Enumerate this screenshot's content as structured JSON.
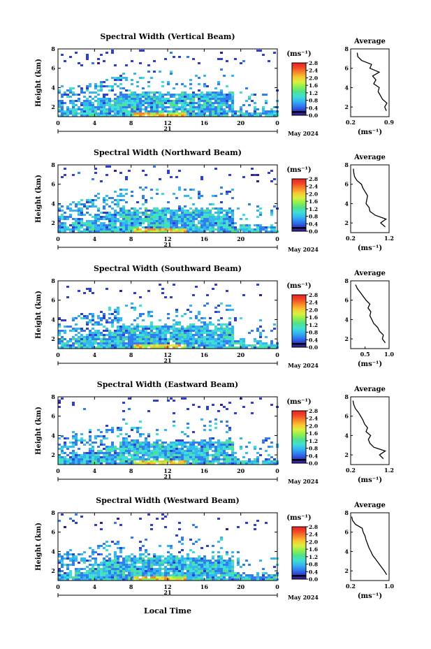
{
  "figure": {
    "xlabel": "Local Time",
    "colorbar_unit": "(ms⁻¹)",
    "avg_title": "Average",
    "avg_unit": "(ms⁻¹)",
    "date_day": "21",
    "date_label": "May 2024",
    "colors": {
      "scale": [
        "#3a1a8c",
        "#2f3fd0",
        "#2f7ff0",
        "#35b8f0",
        "#40e0d0",
        "#52e08a",
        "#8ef050",
        "#d8f040",
        "#f8c830",
        "#f88828",
        "#f04828",
        "#e82020"
      ],
      "black_band": "#000000"
    }
  },
  "chart_data": [
    {
      "type": "heatmap",
      "title": "Spectral Width (Vertical Beam)",
      "ylabel": "Height (km)",
      "x_ticks": [
        "0",
        "4",
        "8",
        "12",
        "16",
        "20",
        "0"
      ],
      "xlim": [
        0,
        24
      ],
      "y_ticks": [
        "2",
        "4",
        "6",
        "8"
      ],
      "ylim": [
        1,
        8
      ],
      "colorbar_ticks": [
        "0.0",
        "0.4",
        "0.8",
        "1.2",
        "1.6",
        "2.0",
        "2.4",
        "2.8"
      ],
      "colorbar_range": [
        0,
        2.8
      ],
      "avg_profile": {
        "x_ticks": [
          "0.2",
          "0.9"
        ],
        "xlim": [
          0.2,
          0.9
        ],
        "y_ticks": [
          "2",
          "4",
          "6",
          "8"
        ],
        "ylim": [
          1,
          8
        ],
        "height": [
          1.6,
          2.0,
          2.4,
          2.8,
          3.2,
          3.6,
          4.0,
          4.4,
          4.8,
          5.2,
          5.6,
          6.0,
          6.4,
          6.8,
          7.2,
          7.6
        ],
        "value": [
          0.85,
          0.82,
          0.86,
          0.78,
          0.74,
          0.7,
          0.72,
          0.62,
          0.66,
          0.6,
          0.72,
          0.55,
          0.58,
          0.4,
          0.33,
          0.32
        ]
      }
    },
    {
      "type": "heatmap",
      "title": "Spectral Width (Northward Beam)",
      "ylabel": "Height (km)",
      "x_ticks": [
        "0",
        "4",
        "8",
        "12",
        "16",
        "20",
        "0"
      ],
      "xlim": [
        0,
        24
      ],
      "y_ticks": [
        "2",
        "4",
        "6",
        "8"
      ],
      "ylim": [
        1,
        8
      ],
      "colorbar_ticks": [
        "0.0",
        "0.4",
        "0.8",
        "1.2",
        "1.6",
        "2.0",
        "2.4",
        "2.8"
      ],
      "colorbar_range": [
        0,
        2.8
      ],
      "avg_profile": {
        "x_ticks": [
          "0.2",
          "1.2"
        ],
        "xlim": [
          0.2,
          1.2
        ],
        "y_ticks": [
          "2",
          "4",
          "6",
          "8"
        ],
        "ylim": [
          1,
          8
        ],
        "height": [
          1.6,
          2.0,
          2.4,
          2.8,
          3.2,
          3.6,
          4.0,
          4.4,
          4.8,
          5.2,
          5.6,
          6.0,
          6.4,
          6.8,
          7.2,
          7.6
        ],
        "value": [
          1.1,
          0.98,
          1.12,
          0.84,
          0.7,
          0.68,
          0.6,
          0.62,
          0.64,
          0.58,
          0.52,
          0.48,
          0.36,
          0.3,
          0.28,
          0.27
        ]
      }
    },
    {
      "type": "heatmap",
      "title": "Spectral Width (Southward Beam)",
      "ylabel": "Height (km)",
      "x_ticks": [
        "0",
        "4",
        "8",
        "12",
        "16",
        "20",
        "0"
      ],
      "xlim": [
        0,
        24
      ],
      "y_ticks": [
        "2",
        "4",
        "6",
        "8"
      ],
      "ylim": [
        1,
        8
      ],
      "colorbar_ticks": [
        "0.0",
        "0.4",
        "0.8",
        "1.2",
        "1.6",
        "2.0",
        "2.4",
        "2.8"
      ],
      "colorbar_range": [
        0,
        2.8
      ],
      "avg_profile": {
        "x_ticks": [
          "0.5",
          "1.0"
        ],
        "xlim": [
          0.2,
          1.0
        ],
        "y_ticks": [
          "2",
          "4",
          "6",
          "8"
        ],
        "ylim": [
          1,
          8
        ],
        "height": [
          1.6,
          2.0,
          2.4,
          2.8,
          3.2,
          3.6,
          4.0,
          4.4,
          4.8,
          5.2,
          5.6,
          6.0,
          6.4,
          6.8,
          7.2,
          7.6
        ],
        "value": [
          0.92,
          0.86,
          0.88,
          0.8,
          0.76,
          0.68,
          0.64,
          0.6,
          0.62,
          0.56,
          0.6,
          0.52,
          0.46,
          0.4,
          0.34,
          0.3
        ]
      }
    },
    {
      "type": "heatmap",
      "title": "Spectral Width (Eastward Beam)",
      "ylabel": "Height (km)",
      "x_ticks": [
        "0",
        "4",
        "8",
        "12",
        "16",
        "20",
        "0"
      ],
      "xlim": [
        0,
        24
      ],
      "y_ticks": [
        "2",
        "4",
        "6",
        "8"
      ],
      "ylim": [
        1,
        8
      ],
      "colorbar_ticks": [
        "0.0",
        "0.4",
        "0.8",
        "1.2",
        "1.6",
        "2.0",
        "2.4",
        "2.8"
      ],
      "colorbar_range": [
        0,
        2.8
      ],
      "avg_profile": {
        "x_ticks": [
          "0.2",
          "1.2"
        ],
        "xlim": [
          0.2,
          1.2
        ],
        "y_ticks": [
          "2",
          "4",
          "6",
          "8"
        ],
        "ylim": [
          1,
          8
        ],
        "height": [
          1.6,
          2.0,
          2.4,
          2.8,
          3.2,
          3.6,
          4.0,
          4.4,
          4.8,
          5.2,
          5.6,
          6.0,
          6.4,
          6.8,
          7.2,
          7.6
        ],
        "value": [
          1.05,
          0.95,
          1.1,
          0.8,
          0.7,
          0.66,
          0.72,
          0.6,
          0.64,
          0.56,
          0.52,
          0.46,
          0.4,
          0.32,
          0.28,
          0.26
        ]
      }
    },
    {
      "type": "heatmap",
      "title": "Spectral Width (Westward Beam)",
      "ylabel": "Height (km)",
      "x_ticks": [
        "0",
        "4",
        "8",
        "12",
        "16",
        "20",
        "0"
      ],
      "xlim": [
        0,
        24
      ],
      "y_ticks": [
        "2",
        "4",
        "6",
        "8"
      ],
      "ylim": [
        1,
        8
      ],
      "colorbar_ticks": [
        "0.0",
        "0.4",
        "0.8",
        "1.2",
        "1.6",
        "2.0",
        "2.4",
        "2.8"
      ],
      "colorbar_range": [
        0,
        2.8
      ],
      "avg_profile": {
        "x_ticks": [
          "0.2",
          "1.0"
        ],
        "xlim": [
          0.2,
          1.0
        ],
        "y_ticks": [
          "2",
          "4",
          "6",
          "8"
        ],
        "ylim": [
          1,
          8
        ],
        "height": [
          1.6,
          2.0,
          2.4,
          2.8,
          3.2,
          3.6,
          4.0,
          4.4,
          4.8,
          5.2,
          5.6,
          6.0,
          6.4,
          6.8,
          7.2,
          7.6
        ],
        "value": [
          0.95,
          0.9,
          0.84,
          0.78,
          0.72,
          0.66,
          0.62,
          0.58,
          0.55,
          0.52,
          0.5,
          0.46,
          0.44,
          0.3,
          0.24,
          0.22
        ]
      }
    }
  ]
}
